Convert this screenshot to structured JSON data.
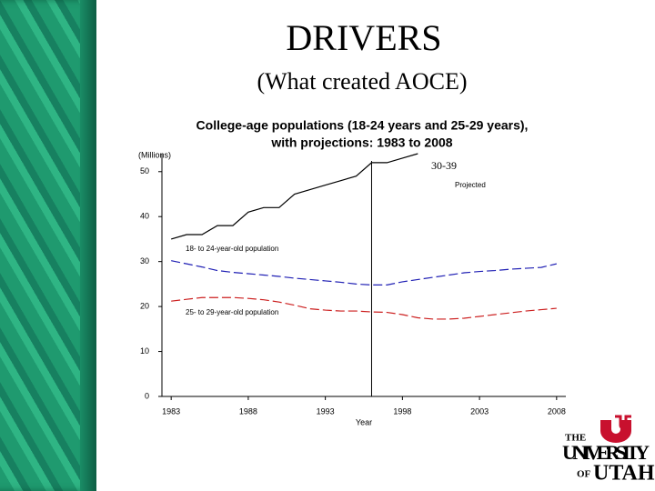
{
  "slide": {
    "title": "DRIVERS",
    "subtitle": "(What created AOCE)"
  },
  "logo": {
    "line1": "THE",
    "line2": "UNIVERSITY",
    "line3": "OF",
    "line4": "UTAH"
  },
  "chart_data": {
    "type": "line",
    "title": "College-age populations (18-24 years and 25-29 years),",
    "subtitle": "with projections: 1983 to 2008",
    "y_label": "(Millions)",
    "x_label": "Year",
    "projection_label": "Projected",
    "projection_start": 1996,
    "x": [
      1983,
      1984,
      1985,
      1986,
      1987,
      1988,
      1989,
      1990,
      1991,
      1992,
      1993,
      1994,
      1995,
      1996,
      1997,
      1998,
      1999,
      2000,
      2001,
      2002,
      2003,
      2004,
      2005,
      2006,
      2007,
      2008
    ],
    "series": [
      {
        "name": "30-39",
        "color": "#000000",
        "dashed": false,
        "values": [
          35,
          36,
          36,
          38,
          38,
          41,
          42,
          42,
          45,
          46,
          47,
          48,
          49,
          52,
          52,
          53,
          54,
          null,
          null,
          null,
          null,
          null,
          null,
          null,
          null,
          null
        ]
      },
      {
        "name": "18- to 24-year-old population",
        "color": "#1f1fb4",
        "dashed": true,
        "values": [
          30.2,
          29.5,
          28.8,
          28,
          27.6,
          27.3,
          27,
          26.7,
          26.3,
          26,
          25.7,
          25.4,
          25,
          24.8,
          24.8,
          25.5,
          26,
          26.5,
          27,
          27.5,
          27.8,
          28,
          28.3,
          28.5,
          28.7,
          29.5
        ]
      },
      {
        "name": "25- to 29-year-old population",
        "color": "#cc1f1f",
        "dashed": true,
        "values": [
          21.2,
          21.6,
          22,
          22,
          22,
          21.8,
          21.5,
          21,
          20.3,
          19.5,
          19.2,
          19,
          19,
          18.8,
          18.7,
          18.2,
          17.5,
          17.2,
          17.2,
          17.4,
          17.8,
          18.2,
          18.6,
          19,
          19.3,
          19.6
        ]
      }
    ],
    "xlim": [
      1982.4,
      2008.6
    ],
    "xticks": [
      1983,
      1988,
      1993,
      1998,
      2003,
      2008
    ],
    "ylim": [
      0,
      54
    ],
    "yticks": [
      0,
      10,
      20,
      30,
      40,
      50
    ]
  }
}
